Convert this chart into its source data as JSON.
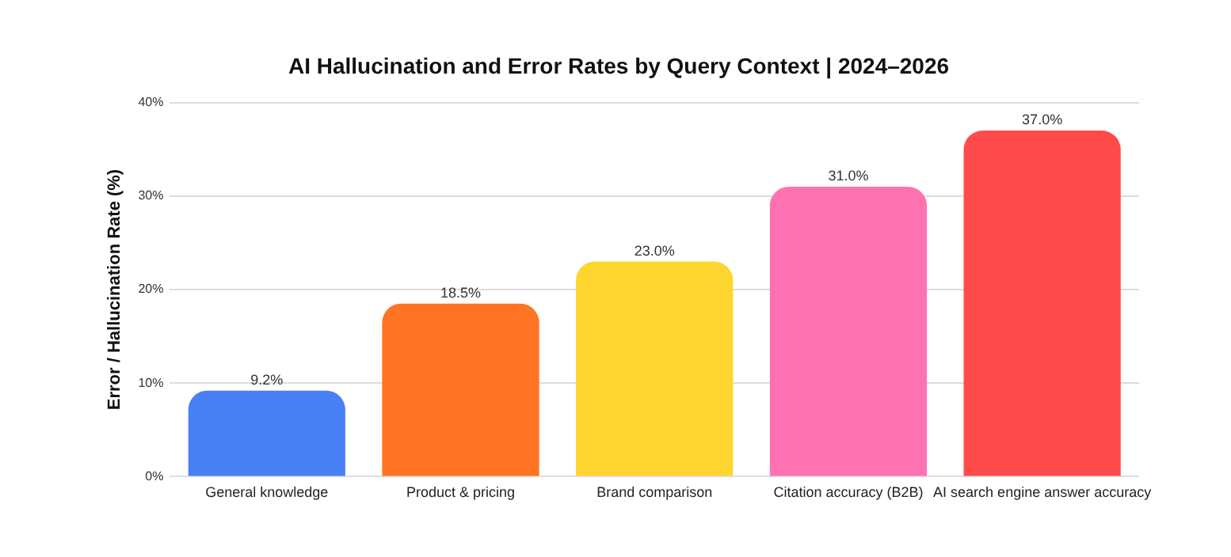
{
  "chart_data": {
    "type": "bar",
    "title": "AI Hallucination and Error Rates by Query Context | 2024–2026",
    "ylabel": "Error / Hallucination Rate (%)",
    "categories": [
      "General knowledge",
      "Product & pricing",
      "Brand comparison",
      "Citation accuracy (B2B)",
      "AI search engine answer accuracy"
    ],
    "values": [
      9.2,
      18.5,
      23.0,
      31.0,
      37.0
    ],
    "colors": [
      "#4a80f6",
      "#ff7322",
      "#ffd530",
      "#ff72b2",
      "#ff4a4c"
    ],
    "value_labels": [
      "9.2%",
      "18.5%",
      "23.0%",
      "31.0%",
      "37.0%"
    ],
    "ylim": [
      0,
      40
    ],
    "yticks": [
      {
        "value": 0,
        "label": "0%"
      },
      {
        "value": 10,
        "label": "10%"
      },
      {
        "value": 20,
        "label": "20%"
      },
      {
        "value": 30,
        "label": "30%"
      },
      {
        "value": 40,
        "label": "40%"
      }
    ],
    "grid": "y",
    "legend": false
  }
}
